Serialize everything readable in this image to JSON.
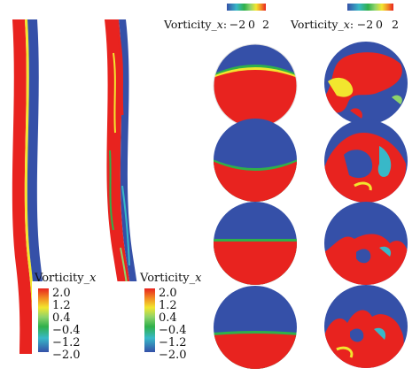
{
  "colors": {
    "red": "#e8231f",
    "blue": "#3550a8",
    "green": "#2fb04a",
    "lightgreen": "#8ed36a",
    "yellow": "#f2e62e",
    "orange": "#f28a22",
    "cyan": "#38b8c8"
  },
  "left_legend": {
    "title_prefix": "Vorticity_",
    "title_var": "x",
    "ticks": [
      "2.0",
      "1.2",
      "0.4",
      "−0.4",
      "−1.2",
      "−2.0"
    ]
  },
  "right_legend": {
    "title_prefix": "Vorticity_",
    "title_var": "x",
    "ticks": [
      "2.0",
      "1.2",
      "0.4",
      "−0.4",
      "−1.2",
      "−2.0"
    ]
  },
  "top_bar_left": {
    "title_prefix": "Vorticity_",
    "title_var": "x",
    "title_suffix": ":",
    "ticks": [
      "−2",
      "0",
      "2"
    ]
  },
  "top_bar_right": {
    "title_prefix": "Vorticity_",
    "title_var": "x",
    "title_suffix": ":",
    "ticks": [
      "−2",
      "0",
      "2"
    ]
  }
}
